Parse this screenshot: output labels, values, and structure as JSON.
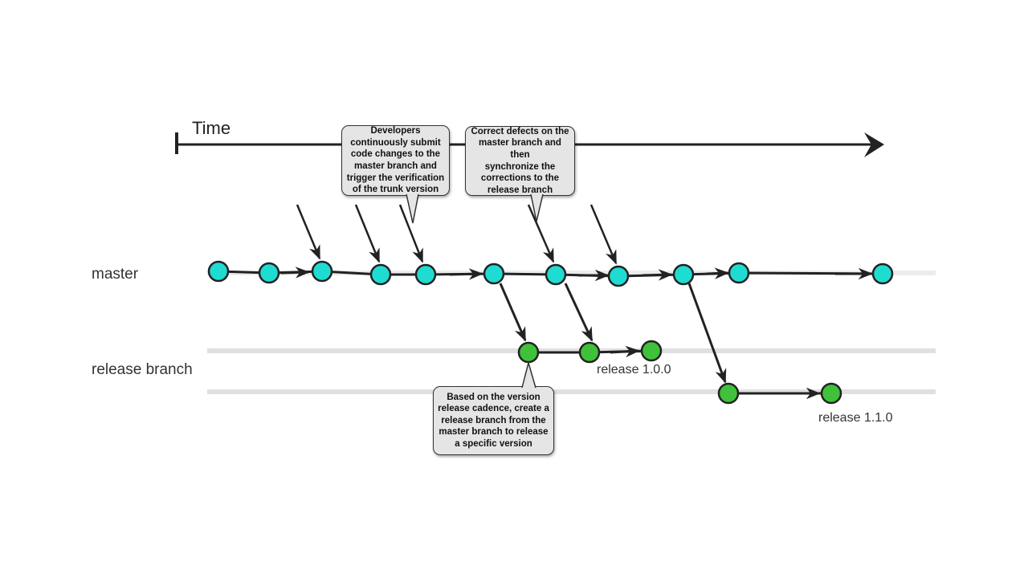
{
  "time_label": "Time",
  "lanes": {
    "master": "master",
    "release": "release branch"
  },
  "release_tags": {
    "r100": "release 1.0.0",
    "r110": "release 1.1.0"
  },
  "callouts": {
    "developers": "Developers\ncontinuously submit\ncode changes to the\nmaster branch and\ntrigger the verification\nof the trunk version",
    "correct": "Correct defects on the\nmaster branch and then\nsynchronize the\ncorrections to the\nrelease branch",
    "release": "Based on the version\nrelease cadence, create a\nrelease branch from the\nmaster branch to release\na specific version"
  },
  "colors": {
    "master_node": "#1fdcd2",
    "release_node": "#3fc23a",
    "stroke": "#222222",
    "track": "#e2e2e2"
  }
}
